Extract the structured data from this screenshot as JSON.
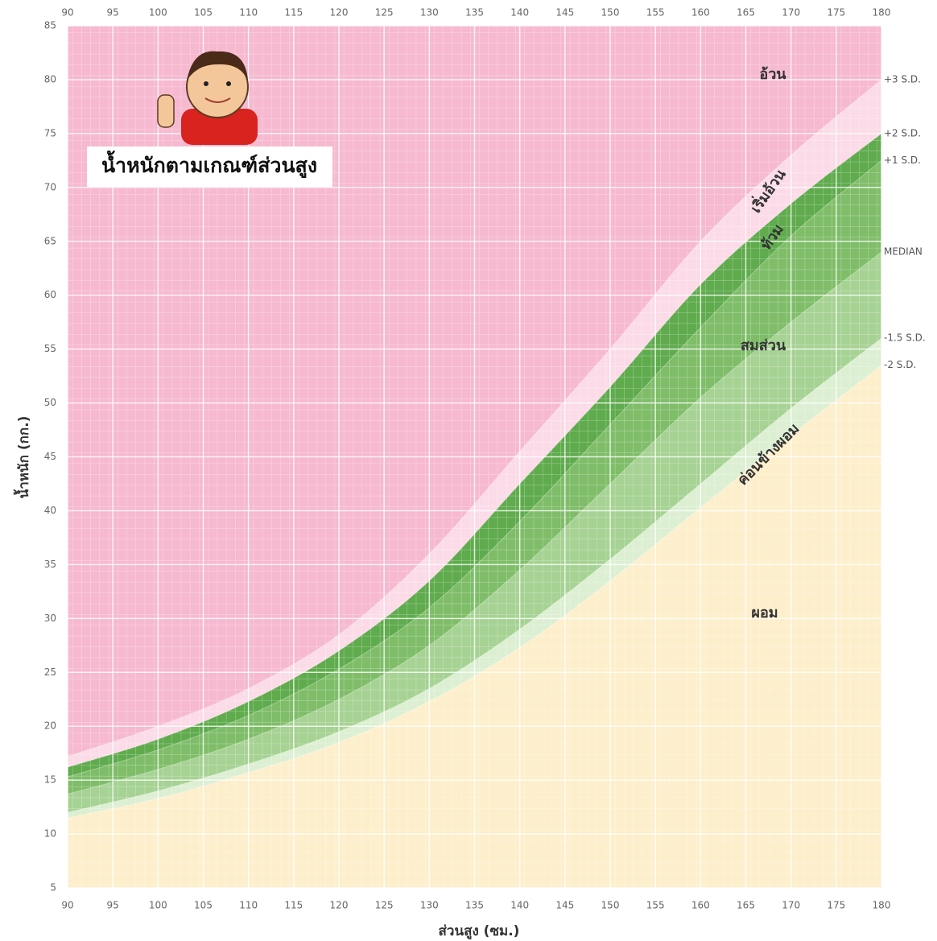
{
  "chart_data": {
    "type": "area",
    "title": "น้ำหนักตามเกณฑ์ส่วนสูง",
    "x_label": "ส่วนสูง (ซม.)",
    "y_label": "น้ำหนัก (กก.)",
    "x": [
      90,
      100,
      110,
      120,
      130,
      140,
      150,
      160,
      170,
      180
    ],
    "top_color": "#f6b9d0",
    "series": [
      {
        "name": "+3 S.D.",
        "color": "#fbdbe7",
        "values": [
          17.2,
          20,
          23.5,
          28.5,
          36,
          45.5,
          55,
          65,
          73,
          80
        ]
      },
      {
        "name": "+2 S.D.",
        "color": "#5fab4d",
        "values": [
          16.2,
          18.8,
          22.3,
          27,
          33.5,
          42.5,
          51.5,
          61,
          68.5,
          75
        ]
      },
      {
        "name": "+1 S.D.",
        "color": "#7fbd69",
        "values": [
          15.3,
          17.8,
          21,
          25.3,
          31,
          39,
          48,
          57,
          65.5,
          72.5
        ]
      },
      {
        "name": "MEDIAN",
        "color": "#a6d293",
        "values": [
          13.7,
          16,
          18.8,
          22.5,
          27.5,
          34.5,
          42.5,
          50.5,
          57.5,
          64
        ]
      },
      {
        "name": "-1.5 S.D.",
        "color": "#dcefd2",
        "values": [
          12,
          14,
          16.5,
          19.5,
          23.5,
          29,
          35.5,
          42.5,
          49.5,
          56
        ]
      },
      {
        "name": "-2 S.D.",
        "color": "#fdefcb",
        "values": [
          11.5,
          13.3,
          15.7,
          18.5,
          22.3,
          27.3,
          33.5,
          40.3,
          47,
          53.5
        ]
      }
    ],
    "annotations": [
      "อ้วน",
      "เริ่มอ้วน",
      "ท้วม",
      "สมส่วน",
      "ค่อนข้างผอม",
      "ผอม"
    ],
    "xlim": [
      90,
      180
    ],
    "xticks": [
      90,
      95,
      100,
      105,
      110,
      115,
      120,
      125,
      130,
      135,
      140,
      145,
      150,
      155,
      160,
      165,
      170,
      175,
      180
    ],
    "ylim": [
      5,
      85
    ],
    "yticks": [
      5,
      10,
      15,
      20,
      25,
      30,
      35,
      40,
      45,
      50,
      55,
      60,
      65,
      70,
      75,
      80,
      85
    ],
    "grid": true
  }
}
